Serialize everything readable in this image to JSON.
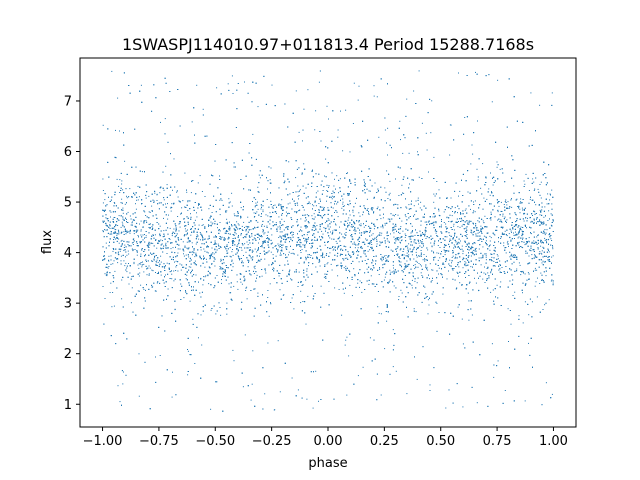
{
  "chart_data": {
    "type": "scatter",
    "title": "1SWASPJ114010.97+011813.4 Period 15288.7168s",
    "xlabel": "phase",
    "ylabel": "flux",
    "xlim": [
      -1.1,
      1.1
    ],
    "ylim": [
      0.55,
      7.85
    ],
    "x_ticks": [
      -1.0,
      -0.75,
      -0.5,
      -0.25,
      0.0,
      0.25,
      0.5,
      0.75,
      1.0
    ],
    "x_tick_labels": [
      "−1.00",
      "−0.75",
      "−0.50",
      "−0.25",
      "0.00",
      "0.25",
      "0.50",
      "0.75",
      "1.00"
    ],
    "y_ticks": [
      1,
      2,
      3,
      4,
      5,
      6,
      7
    ],
    "y_tick_labels": [
      "1",
      "2",
      "3",
      "4",
      "5",
      "6",
      "7"
    ],
    "grid": false,
    "marker_color": "#1f77b4",
    "series": [
      {
        "phase": [
          -1.0,
          -0.75,
          -0.5,
          -0.25,
          0.0,
          0.25,
          0.5,
          0.75,
          1.0
        ],
        "flux_center": [
          4.35,
          4.25,
          4.1,
          4.3,
          4.4,
          4.25,
          4.1,
          4.3,
          4.35
        ],
        "flux_core_spread": 0.55,
        "flux_range": [
          0.85,
          7.6
        ]
      }
    ]
  }
}
